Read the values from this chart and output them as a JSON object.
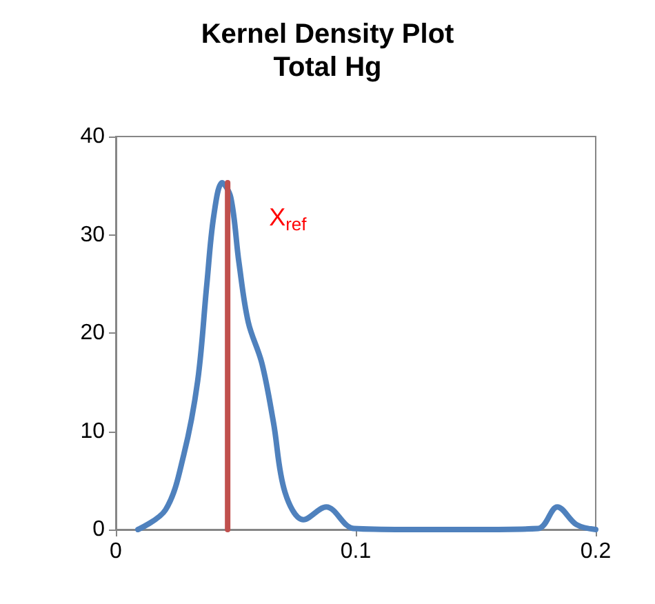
{
  "chart_data": {
    "type": "line",
    "title": "Kernel Density Plot",
    "subtitle": "Total Hg",
    "xlim": [
      0,
      0.2
    ],
    "xticks": [
      0,
      0.1,
      0.2
    ],
    "ylim": [
      0,
      40
    ],
    "yticks": [
      0,
      10,
      20,
      30,
      40
    ],
    "grid": false,
    "marker": "none",
    "line_style": "solid",
    "series": [
      {
        "color": "#4f81bd",
        "x": [
          0.0092,
          0.0207,
          0.0283,
          0.0341,
          0.0379,
          0.0408,
          0.0443,
          0.0479,
          0.0513,
          0.0552,
          0.0609,
          0.0657,
          0.0705,
          0.0782,
          0.0877,
          0.0992,
          0.12,
          0.15,
          0.176,
          0.184,
          0.192,
          0.2
        ],
        "values": [
          0,
          2.0,
          7.6,
          15.1,
          24.9,
          31.9,
          35.3,
          33.8,
          27.2,
          21.1,
          16.9,
          10.9,
          3.8,
          1.0,
          2.3,
          0.1,
          0,
          0,
          0.1,
          2.3,
          0.5,
          0
        ]
      },
      {
        "color": "#c0504d",
        "x": [
          0.0466,
          0.0466
        ],
        "values": [
          0,
          35.3
        ]
      }
    ],
    "annotations": [
      "X$_{ref}$"
    ]
  }
}
